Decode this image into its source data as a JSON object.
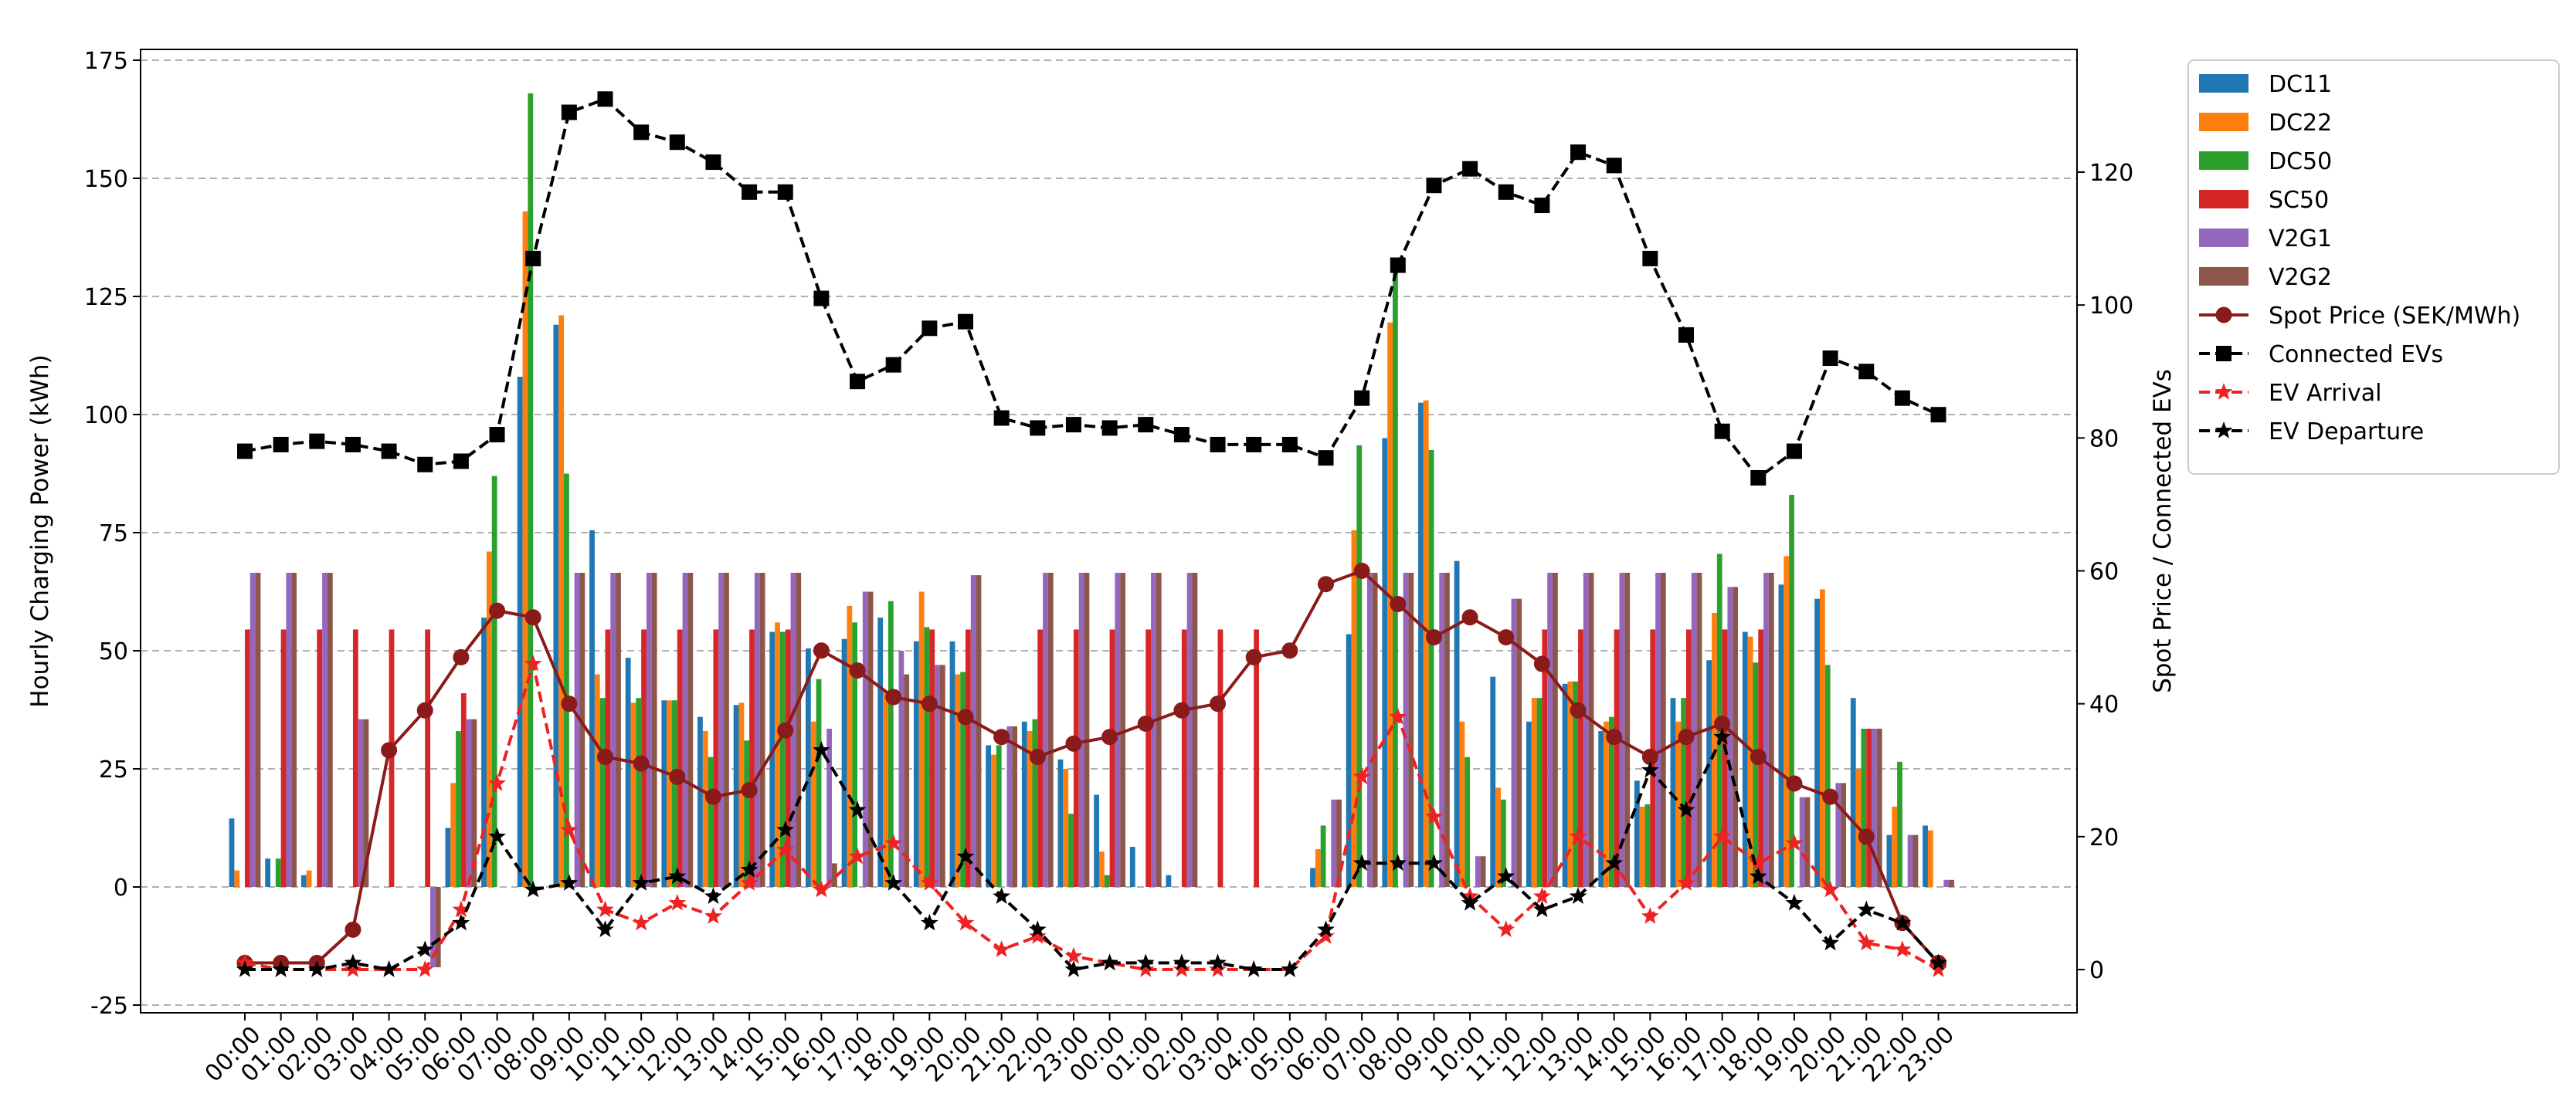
{
  "chart_data": {
    "type": "bar",
    "title": "",
    "ylabel": "Hourly Charging Power (kWh)",
    "ylabel_right": "Spot Price / Connected EVs",
    "ylim": [
      -27,
      178
    ],
    "ylim_right": [
      -7,
      136
    ],
    "yticks": [
      -25,
      0,
      25,
      50,
      75,
      100,
      125,
      150,
      175
    ],
    "yticks_right": [
      0,
      20,
      40,
      60,
      80,
      100,
      120
    ],
    "grid": "y-dashed",
    "legend_position": "outside-right",
    "categories": [
      "00:00",
      "01:00",
      "02:00",
      "03:00",
      "04:00",
      "05:00",
      "06:00",
      "07:00",
      "08:00",
      "09:00",
      "10:00",
      "11:00",
      "12:00",
      "13:00",
      "14:00",
      "15:00",
      "16:00",
      "17:00",
      "18:00",
      "19:00",
      "20:00",
      "21:00",
      "22:00",
      "23:00",
      "00:00",
      "01:00",
      "02:00",
      "03:00",
      "04:00",
      "05:00",
      "06:00",
      "07:00",
      "08:00",
      "09:00",
      "10:00",
      "11:00",
      "12:00",
      "13:00",
      "14:00",
      "15:00",
      "16:00",
      "17:00",
      "18:00",
      "19:00",
      "20:00",
      "21:00",
      "22:00",
      "23:00"
    ],
    "bar_series": [
      {
        "name": "DC11",
        "color": "#1f77b4",
        "values": [
          14.5,
          6,
          2.5,
          0,
          0,
          0,
          12.5,
          57,
          108,
          119,
          75.5,
          48.5,
          39.5,
          36,
          38.5,
          54,
          50.5,
          52.5,
          57,
          52,
          52,
          30,
          35,
          27,
          19.5,
          8.5,
          2.5,
          0,
          0,
          0,
          4,
          53.5,
          95,
          102.5,
          69,
          44.5,
          35,
          43,
          33,
          22.5,
          40,
          48,
          54,
          64,
          61,
          40,
          11,
          13
        ]
      },
      {
        "name": "DC22",
        "color": "#ff7f0e",
        "values": [
          3.5,
          0,
          3.5,
          0,
          0,
          0,
          22,
          71,
          143,
          121,
          45,
          39,
          39.5,
          33,
          39,
          56,
          35,
          59.5,
          41.5,
          62.5,
          45,
          28,
          33,
          25,
          7.5,
          0,
          0,
          0,
          0,
          0,
          8,
          75.5,
          119.5,
          103,
          35,
          21,
          40,
          43.5,
          35,
          17,
          35,
          58,
          53,
          70,
          63,
          25,
          17,
          12
        ]
      },
      {
        "name": "DC50",
        "color": "#2ca02c",
        "values": [
          0,
          6,
          0,
          0,
          0,
          0,
          33,
          87,
          168,
          87.5,
          40,
          40,
          39.5,
          27.5,
          31,
          54,
          44,
          56,
          60.5,
          55,
          45.5,
          30,
          35.5,
          15.5,
          2.5,
          0,
          0,
          0,
          0,
          0,
          13,
          93.5,
          131,
          92.5,
          27.5,
          18.5,
          40,
          43.5,
          36,
          17.5,
          40,
          70.5,
          47.5,
          83,
          47,
          33.5,
          26.5,
          0
        ]
      },
      {
        "name": "SC50",
        "color": "#d62728",
        "values": [
          54.5,
          54.5,
          54.5,
          54.5,
          54.5,
          54.5,
          41,
          0,
          0,
          0,
          54.5,
          54.5,
          54.5,
          54.5,
          54.5,
          54.5,
          0,
          0,
          0,
          54.5,
          54.5,
          0,
          54.5,
          54.5,
          54.5,
          54.5,
          54.5,
          54.5,
          54.5,
          0,
          0,
          0,
          0,
          0,
          0,
          0,
          54.5,
          54.5,
          54.5,
          54.5,
          54.5,
          54.5,
          54.5,
          0,
          0,
          33.5,
          0,
          0
        ]
      },
      {
        "name": "V2G1",
        "color": "#9467bd",
        "values": [
          66.5,
          66.5,
          66.5,
          35.5,
          0,
          -17,
          35.5,
          0,
          0,
          66.5,
          66.5,
          66.5,
          66.5,
          66.5,
          66.5,
          66.5,
          33.5,
          62.5,
          50,
          47,
          66,
          34,
          66.5,
          66.5,
          66.5,
          66.5,
          66.5,
          0,
          0,
          0,
          18.5,
          66.5,
          66.5,
          66.5,
          6.5,
          61,
          66.5,
          66.5,
          66.5,
          66.5,
          66.5,
          63.5,
          66.5,
          19,
          22,
          33.5,
          11,
          1.5
        ]
      },
      {
        "name": "V2G2",
        "color": "#8c564b",
        "values": [
          66.5,
          66.5,
          66.5,
          35.5,
          0,
          -17,
          35.5,
          0,
          0,
          66.5,
          66.5,
          66.5,
          66.5,
          66.5,
          66.5,
          66.5,
          5,
          62.5,
          45,
          47,
          66,
          34,
          66.5,
          66.5,
          66.5,
          66.5,
          66.5,
          0,
          0,
          0,
          18.5,
          66.5,
          66.5,
          66.5,
          6.5,
          61,
          66.5,
          66.5,
          66.5,
          66.5,
          66.5,
          63.5,
          66.5,
          19,
          22,
          33.5,
          11,
          1.5
        ]
      }
    ],
    "line_series": [
      {
        "name": "Spot Price (SEK/MWh)",
        "color": "#8b1a1a",
        "style": "solid",
        "marker": "circle",
        "values": [
          1,
          1,
          1,
          6,
          33,
          39,
          47,
          54,
          53,
          40,
          32,
          31,
          29,
          26,
          27,
          36,
          48,
          45,
          41,
          40,
          38,
          35,
          32,
          34,
          35,
          37,
          39,
          40,
          47,
          48,
          58,
          60,
          55,
          50,
          53,
          50,
          46,
          39,
          35,
          32,
          35,
          37,
          32,
          28,
          26,
          20,
          7,
          1
        ]
      },
      {
        "name": "Connected EVs",
        "color": "#000000",
        "style": "dashed",
        "marker": "square",
        "values": [
          78,
          79,
          79.5,
          79,
          78,
          76,
          76.5,
          80.5,
          107,
          129,
          131,
          126,
          124.5,
          121.5,
          117,
          117,
          101,
          88.5,
          91,
          96.5,
          97.5,
          83,
          81.5,
          82,
          81.5,
          82,
          80.5,
          79,
          79,
          79,
          77,
          86,
          106,
          118,
          120.5,
          117,
          115,
          123,
          121,
          107,
          95.5,
          81,
          74,
          78,
          92,
          90,
          86,
          83.5
        ]
      },
      {
        "name": "EV Arrival",
        "color": "#ee2222",
        "style": "dashed",
        "marker": "star",
        "values": [
          1,
          0,
          0,
          0,
          0,
          0,
          9,
          28,
          46,
          21,
          9,
          7,
          10,
          8,
          13,
          18,
          12,
          17,
          19,
          13,
          7,
          3,
          5,
          2,
          1,
          0,
          0,
          0,
          0,
          0,
          5,
          29,
          38,
          23,
          11,
          6,
          11,
          20,
          16,
          8,
          13,
          20,
          16,
          19,
          12,
          4,
          3,
          0
        ]
      },
      {
        "name": "EV Departure",
        "color": "#000000",
        "style": "dashed",
        "marker": "star",
        "values": [
          0,
          0,
          0,
          1,
          0,
          3,
          7,
          20,
          12,
          13,
          6,
          13,
          14,
          11,
          15,
          21,
          33,
          24,
          13,
          7,
          17,
          11,
          6,
          0,
          1,
          1,
          1,
          1,
          0,
          0,
          6,
          16,
          16,
          16,
          10,
          14,
          9,
          11,
          16,
          30,
          24,
          35,
          14,
          10,
          4,
          9,
          7,
          1
        ]
      }
    ]
  }
}
